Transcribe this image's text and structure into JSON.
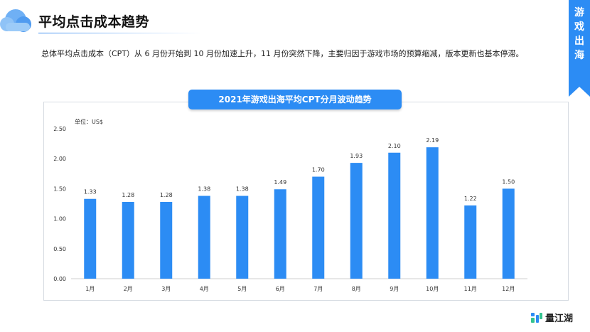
{
  "header": {
    "title": "平均点击成本趋势"
  },
  "side_tab": {
    "chars": [
      "游",
      "戏",
      "出",
      "海"
    ]
  },
  "summary": "总体平均点击成本（CPT）从 6 月份开始到 10 月份加速上升，11 月份突然下降，主要归因于游戏市场的预算缩减，版本更新也基本停滞。",
  "brand": {
    "name": "量江湖",
    "accent": "#2c8cf4"
  },
  "chart_data": {
    "type": "bar",
    "title": "2021年游戏出海平均CPT分月波动趋势",
    "unit_label": "单位：US$",
    "categories": [
      "1月",
      "2月",
      "3月",
      "4月",
      "5月",
      "6月",
      "7月",
      "8月",
      "9月",
      "10月",
      "11月",
      "12月"
    ],
    "values": [
      1.33,
      1.28,
      1.28,
      1.38,
      1.38,
      1.49,
      1.7,
      1.93,
      2.1,
      2.19,
      1.22,
      1.5
    ],
    "value_labels": [
      "1.33",
      "1.28",
      "1.28",
      "1.38",
      "1.38",
      "1.49",
      "1.70",
      "1.93",
      "2.10",
      "2.19",
      "1.22",
      "1.50"
    ],
    "ylim": [
      0,
      2.5
    ],
    "yticks": [
      "0.00",
      "0.50",
      "1.00",
      "1.50",
      "2.00",
      "2.50"
    ],
    "bar_color": "#2c8cf4",
    "grid": false,
    "legend": "none"
  }
}
